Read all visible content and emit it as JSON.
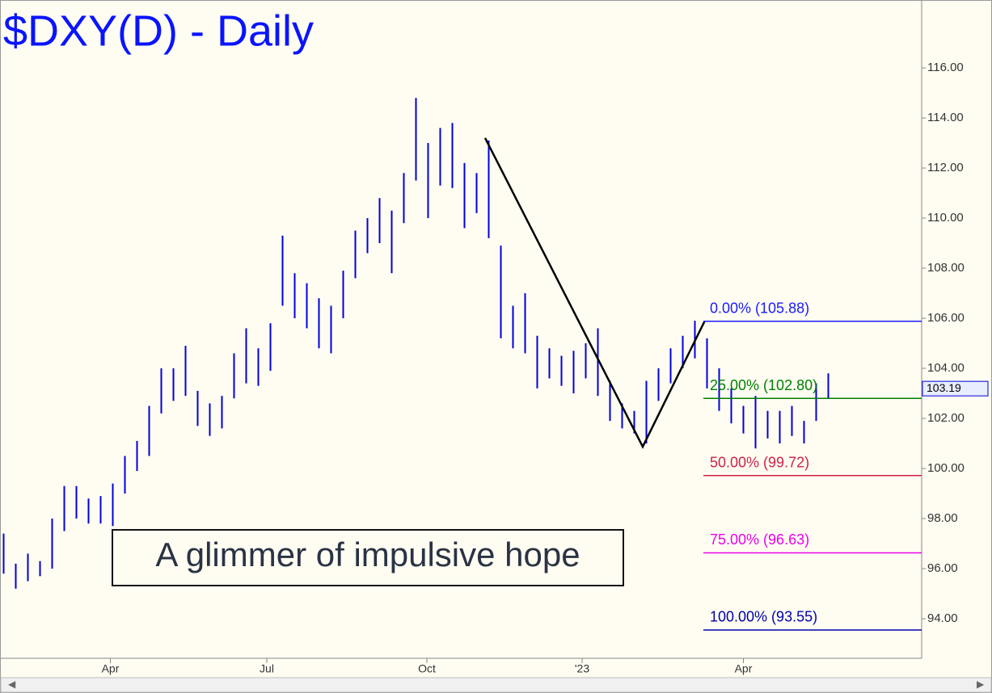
{
  "chart_data": {
    "type": "ohlc",
    "title": "$DXY(D) - Daily",
    "annotation": "A glimmer of impulsive hope",
    "color": "#0000dd",
    "grid": false,
    "x": [
      0,
      1,
      2,
      3,
      4,
      5,
      6,
      7,
      8,
      9,
      10,
      11,
      12,
      13,
      14,
      15,
      16,
      17,
      18,
      19,
      20,
      21,
      22,
      23,
      24,
      25,
      26,
      27,
      28,
      29,
      30,
      31,
      32,
      33,
      34,
      35,
      36,
      37,
      38,
      39,
      40,
      41,
      42,
      43,
      44,
      45,
      46,
      47,
      48,
      49,
      50,
      51,
      52,
      53,
      54,
      55,
      56,
      57,
      58,
      59,
      60,
      61,
      62,
      63,
      64,
      65,
      66,
      67,
      68
    ],
    "high": [
      97.4,
      96.2,
      96.6,
      96.3,
      98.0,
      99.3,
      99.3,
      98.8,
      98.9,
      99.4,
      100.5,
      101.1,
      102.5,
      104.0,
      104.0,
      104.9,
      103.1,
      102.6,
      102.9,
      104.6,
      105.6,
      104.8,
      105.8,
      109.3,
      107.8,
      107.4,
      106.8,
      106.5,
      107.9,
      109.5,
      110.0,
      110.8,
      110.3,
      111.8,
      114.8,
      113.0,
      113.6,
      113.8,
      112.2,
      111.8,
      113.1,
      108.9,
      106.5,
      107.0,
      105.3,
      104.8,
      104.5,
      104.7,
      105.0,
      105.6,
      103.5,
      102.6,
      102.3,
      103.5,
      104.0,
      104.8,
      105.3,
      105.9,
      105.2,
      104.0,
      103.2,
      102.5,
      102.9,
      102.3,
      102.3,
      102.5,
      101.9,
      103.4,
      103.8
    ],
    "low": [
      95.8,
      95.2,
      95.5,
      95.7,
      96.0,
      97.5,
      98.0,
      97.8,
      97.8,
      97.7,
      99.0,
      99.9,
      100.5,
      102.2,
      102.7,
      102.9,
      101.7,
      101.3,
      101.6,
      102.8,
      103.4,
      103.3,
      103.9,
      106.5,
      106.0,
      105.6,
      104.8,
      104.6,
      106.0,
      107.6,
      108.6,
      109.0,
      107.8,
      109.8,
      111.5,
      110.0,
      111.3,
      111.2,
      109.6,
      110.2,
      109.2,
      105.2,
      104.8,
      104.6,
      103.2,
      103.6,
      103.3,
      103.0,
      103.6,
      102.9,
      101.9,
      101.6,
      101.4,
      101.0,
      102.7,
      103.4,
      104.0,
      104.4,
      103.2,
      102.3,
      101.8,
      101.4,
      100.8,
      101.2,
      101.0,
      101.3,
      101.0,
      101.9,
      102.8
    ],
    "swing_line": {
      "x": [
        39.7,
        52.7,
        57.8
      ],
      "values": [
        113.2,
        100.87,
        105.88
      ]
    },
    "levels": [
      {
        "label": "0.00% (105.88)",
        "value": 105.88,
        "color": "#1a1aff"
      },
      {
        "label": "25.00% (102.80)",
        "value": 102.8,
        "color": "#008000"
      },
      {
        "label": "50.00% (99.72)",
        "value": 99.72,
        "color": "#cc2244"
      },
      {
        "label": "75.00% (96.63)",
        "value": 96.63,
        "color": "#ee00ee"
      },
      {
        "label": "100.00% (93.55)",
        "value": 93.55,
        "color": "#0000aa"
      }
    ],
    "last_price": 103.19,
    "xlim": [
      -0.3,
      75.7
    ],
    "ylim": [
      92.42,
      118.55
    ],
    "xticks": [
      {
        "value": 8.8,
        "label": "Apr"
      },
      {
        "value": 21.7,
        "label": "Jul"
      },
      {
        "value": 34.9,
        "label": "Oct"
      },
      {
        "value": 47.7,
        "label": "'23"
      },
      {
        "value": 61.0,
        "label": "Apr"
      }
    ],
    "yticks": [
      {
        "value": 94,
        "label": "94.00"
      },
      {
        "value": 96,
        "label": "96.00"
      },
      {
        "value": 98,
        "label": "98.00"
      },
      {
        "value": 100,
        "label": "100.00"
      },
      {
        "value": 102,
        "label": "102.00"
      },
      {
        "value": 104,
        "label": "104.00"
      },
      {
        "value": 106,
        "label": "106.00"
      },
      {
        "value": 108,
        "label": "108.00"
      },
      {
        "value": 110,
        "label": "110.00"
      },
      {
        "value": 112,
        "label": "112.00"
      },
      {
        "value": 114,
        "label": "114.00"
      },
      {
        "value": 116,
        "label": "116.00"
      }
    ]
  }
}
